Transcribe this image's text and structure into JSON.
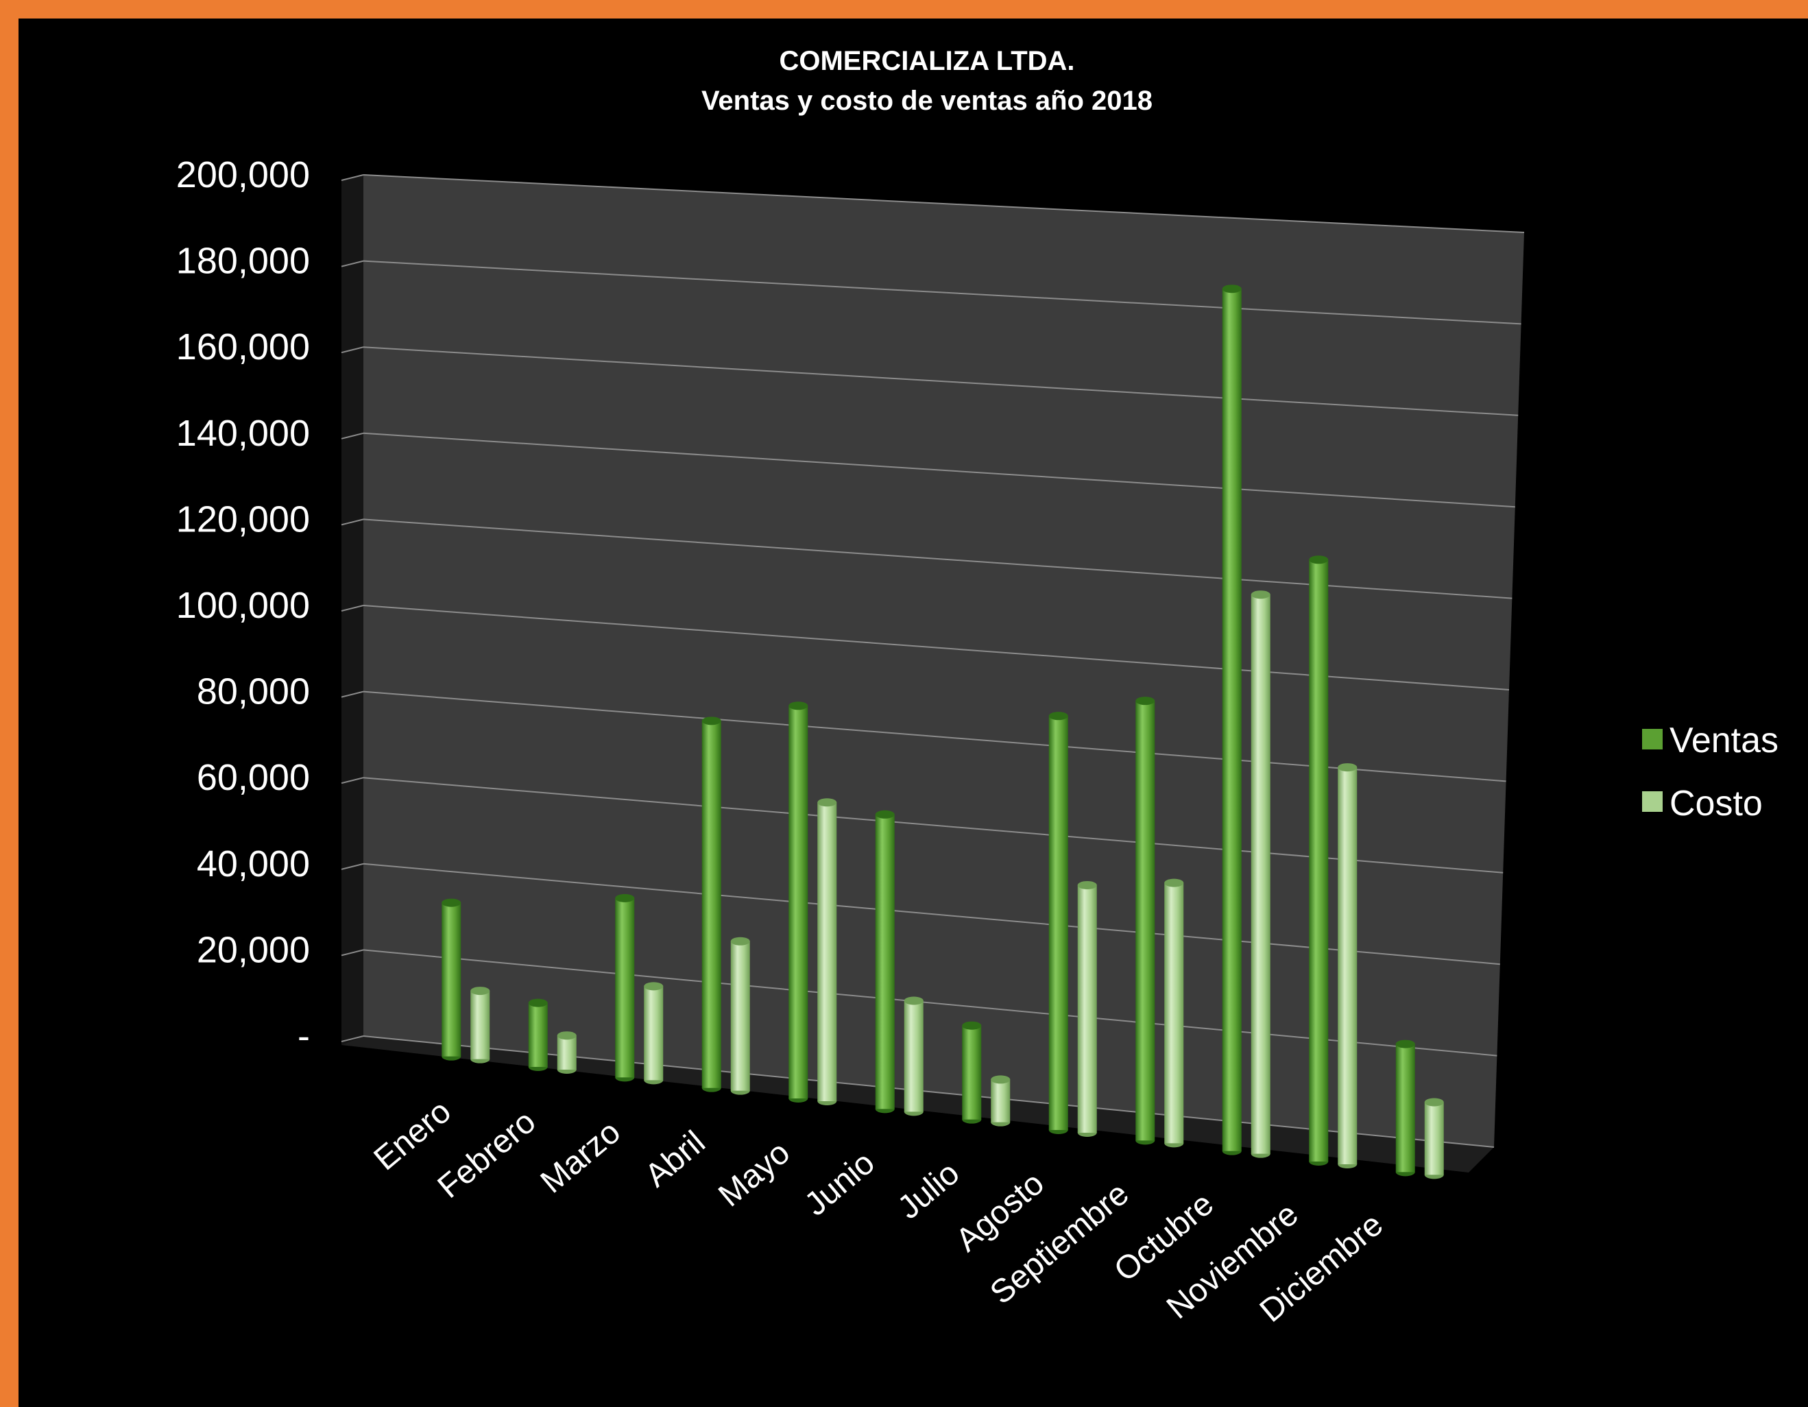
{
  "colors": {
    "frame": "#ED7D31",
    "background": "#000000",
    "wall": "#3C3C3C",
    "floor": "#1E1E1E",
    "grid": "#8C8C8C",
    "ventas": "#5BA032",
    "ventas_light": "#86C95C",
    "ventas_dark": "#2F6E17",
    "costo": "#A9D18E",
    "costo_light": "#D6EDC5",
    "costo_dark": "#6F9E55",
    "text": "#FFFFFF"
  },
  "chart_data": {
    "type": "bar",
    "style": "3d-cylinder",
    "title": [
      "COMERCIALIZA LTDA.",
      "Ventas y costo de ventas año 2018"
    ],
    "categories": [
      "Enero",
      "Febrero",
      "Marzo",
      "Abril",
      "Mayo",
      "Junio",
      "Julio",
      "Agosto",
      "Septiembre",
      "Octubre",
      "Noviembre",
      "Diciembre"
    ],
    "series": [
      {
        "name": "Ventas",
        "values": [
          36000,
          15000,
          42000,
          86000,
          92000,
          69000,
          22000,
          97000,
          103000,
          202000,
          141000,
          30000
        ]
      },
      {
        "name": "Costo",
        "values": [
          16000,
          8000,
          22000,
          35000,
          70000,
          26000,
          10000,
          58000,
          61000,
          131000,
          93000,
          17000
        ]
      }
    ],
    "ylim": [
      0,
      200000
    ],
    "yticks": [
      0,
      20000,
      40000,
      60000,
      80000,
      100000,
      120000,
      140000,
      160000,
      180000,
      200000
    ],
    "ytick_labels": [
      "-",
      "20,000",
      "40,000",
      "60,000",
      "80,000",
      "100,000",
      "120,000",
      "140,000",
      "160,000",
      "180,000",
      "200,000"
    ],
    "xlabel": "",
    "ylabel": "",
    "grid": true,
    "legend": "right"
  }
}
